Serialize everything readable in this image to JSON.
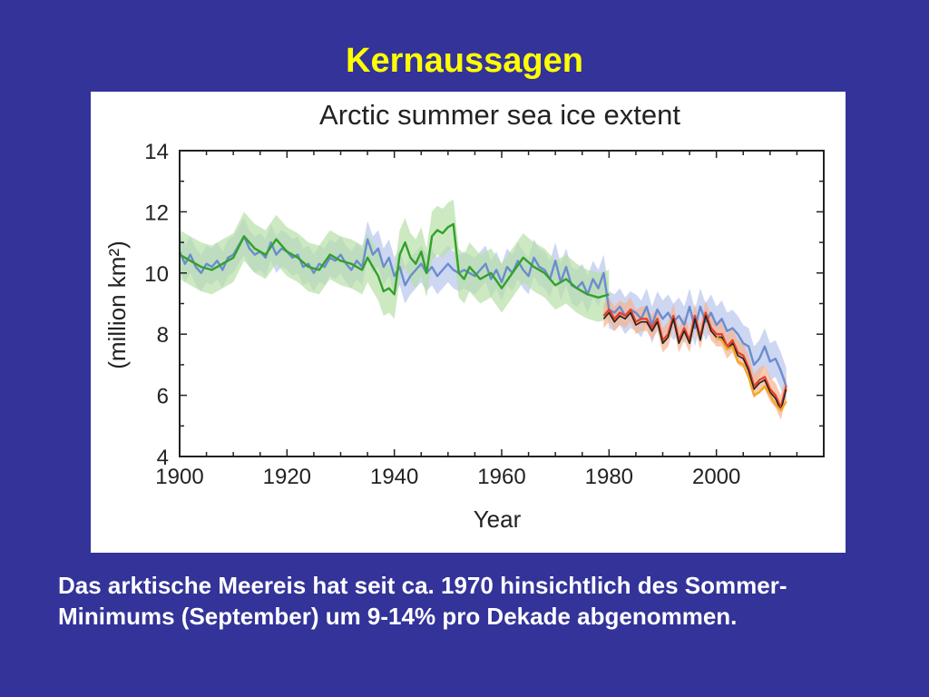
{
  "slide": {
    "title": "Kernaussagen",
    "caption": "Das arktische Meereis hat seit ca. 1970 hinsichtlich des Sommer-Minimums (September) um 9-14% pro Dekade abgenommen."
  },
  "chart_data": {
    "type": "line",
    "title": "Arctic summer sea ice extent",
    "xlabel": "Year",
    "ylabel": "(million km²)",
    "xlim": [
      1900,
      2020
    ],
    "ylim": [
      4,
      14
    ],
    "xticks": [
      1900,
      1920,
      1940,
      1960,
      1980,
      2000
    ],
    "yticks": [
      4,
      6,
      8,
      10,
      12,
      14
    ],
    "grid": false,
    "legend": "none",
    "colors": {
      "blue": "#6b8ccf",
      "green": "#33a02c",
      "red": "#e8402a",
      "orange": "#f5a623",
      "black": "#222222",
      "blue_band": "#b8c6ec",
      "green_band": "#b7dfa8",
      "red_band": "#f7b28e"
    },
    "series": [
      {
        "color_key": "blue",
        "band_color_key": "blue_band",
        "band_halfwidth": 0.6,
        "x": [
          1900,
          1901,
          1902,
          1903,
          1904,
          1905,
          1906,
          1907,
          1908,
          1909,
          1910,
          1911,
          1912,
          1913,
          1914,
          1915,
          1916,
          1917,
          1918,
          1919,
          1920,
          1921,
          1922,
          1923,
          1924,
          1925,
          1926,
          1927,
          1928,
          1929,
          1930,
          1931,
          1932,
          1933,
          1934,
          1935,
          1936,
          1937,
          1938,
          1939,
          1940,
          1941,
          1942,
          1943,
          1944,
          1945,
          1946,
          1947,
          1948,
          1949,
          1950,
          1951,
          1952,
          1953,
          1954,
          1955,
          1956,
          1957,
          1958,
          1959,
          1960,
          1961,
          1962,
          1963,
          1964,
          1965,
          1966,
          1967,
          1968,
          1969,
          1970,
          1971,
          1972,
          1973,
          1974,
          1975,
          1976,
          1977,
          1978,
          1979,
          1980,
          1981,
          1982,
          1983,
          1984,
          1985,
          1986,
          1987,
          1988,
          1989,
          1990,
          1991,
          1992,
          1993,
          1994,
          1995,
          1996,
          1997,
          1998,
          1999,
          2000,
          2001,
          2002,
          2003,
          2004,
          2005,
          2006,
          2007,
          2008,
          2009,
          2010,
          2011,
          2012,
          2013
        ],
        "y": [
          10.7,
          10.3,
          10.6,
          10.2,
          10.0,
          10.3,
          10.2,
          10.4,
          10.1,
          10.5,
          10.6,
          10.9,
          11.2,
          10.8,
          10.6,
          10.7,
          10.5,
          11.0,
          10.6,
          10.8,
          10.7,
          10.5,
          10.6,
          10.2,
          10.3,
          10.0,
          10.3,
          10.2,
          10.5,
          10.4,
          10.6,
          10.3,
          10.1,
          10.4,
          10.2,
          11.1,
          10.6,
          10.8,
          10.2,
          10.5,
          9.9,
          10.2,
          9.6,
          9.9,
          10.1,
          10.3,
          10.0,
          10.2,
          9.9,
          10.1,
          10.3,
          10.1,
          10.0,
          10.1,
          10.0,
          9.9,
          10.1,
          10.3,
          9.8,
          10.1,
          9.7,
          10.2,
          10.0,
          10.4,
          10.1,
          9.9,
          10.5,
          10.2,
          10.1,
          9.8,
          10.4,
          9.7,
          10.2,
          9.6,
          9.5,
          9.7,
          9.3,
          9.8,
          9.5,
          10.0,
          8.8,
          8.7,
          8.9,
          8.6,
          8.8,
          8.7,
          8.5,
          8.9,
          8.3,
          8.8,
          8.5,
          8.7,
          8.4,
          8.6,
          8.3,
          8.9,
          8.2,
          8.9,
          8.4,
          8.7,
          8.3,
          8.5,
          8.1,
          8.2,
          8.0,
          7.7,
          7.6,
          7.0,
          7.2,
          7.6,
          7.1,
          7.2,
          6.8,
          6.3
        ]
      },
      {
        "color_key": "green",
        "band_color_key": "green_band",
        "band_halfwidth": 0.8,
        "x": [
          1900,
          1902,
          1904,
          1906,
          1908,
          1910,
          1912,
          1914,
          1916,
          1918,
          1920,
          1922,
          1924,
          1926,
          1928,
          1930,
          1932,
          1934,
          1935,
          1936,
          1937,
          1938,
          1939,
          1940,
          1941,
          1942,
          1943,
          1944,
          1945,
          1946,
          1947,
          1948,
          1949,
          1950,
          1951,
          1952,
          1953,
          1954,
          1956,
          1958,
          1960,
          1962,
          1964,
          1966,
          1968,
          1970,
          1972,
          1974,
          1976,
          1978,
          1980
        ],
        "y": [
          10.6,
          10.4,
          10.2,
          10.1,
          10.3,
          10.5,
          11.2,
          10.8,
          10.6,
          11.1,
          10.7,
          10.5,
          10.2,
          10.1,
          10.6,
          10.4,
          10.3,
          10.1,
          10.5,
          10.2,
          9.9,
          9.4,
          9.5,
          9.3,
          10.6,
          11.0,
          10.5,
          10.3,
          10.7,
          10.0,
          11.2,
          11.4,
          11.3,
          11.5,
          11.6,
          10.0,
          9.8,
          10.2,
          9.8,
          10.0,
          9.5,
          10.0,
          10.5,
          10.2,
          10.0,
          9.6,
          9.8,
          9.5,
          9.3,
          9.2,
          9.3
        ]
      },
      {
        "color_key": "red",
        "band_color_key": "red_band",
        "band_halfwidth": 0.4,
        "x": [
          1979,
          1980,
          1981,
          1982,
          1983,
          1984,
          1985,
          1986,
          1987,
          1988,
          1989,
          1990,
          1991,
          1992,
          1993,
          1994,
          1995,
          1996,
          1997,
          1998,
          1999,
          2000,
          2001,
          2002,
          2003,
          2004,
          2005,
          2006,
          2007,
          2008,
          2009,
          2010,
          2011,
          2012,
          2013
        ],
        "y": [
          8.6,
          8.8,
          8.5,
          8.7,
          8.6,
          8.8,
          8.4,
          8.5,
          8.5,
          8.2,
          8.5,
          7.8,
          8.0,
          8.6,
          7.8,
          8.2,
          7.8,
          8.6,
          7.9,
          8.7,
          8.2,
          8.0,
          8.0,
          7.6,
          7.8,
          7.4,
          7.3,
          6.9,
          6.3,
          6.5,
          6.6,
          6.2,
          6.0,
          5.6,
          6.3
        ]
      },
      {
        "color_key": "black",
        "x": [
          1979,
          1980,
          1981,
          1982,
          1983,
          1984,
          1985,
          1986,
          1987,
          1988,
          1989,
          1990,
          1991,
          1992,
          1993,
          1994,
          1995,
          1996,
          1997,
          1998,
          1999,
          2000,
          2001,
          2002,
          2003,
          2004,
          2005,
          2006,
          2007,
          2008,
          2009,
          2010,
          2011,
          2012,
          2013
        ],
        "y": [
          8.5,
          8.7,
          8.4,
          8.6,
          8.5,
          8.7,
          8.3,
          8.4,
          8.4,
          8.1,
          8.4,
          7.7,
          7.9,
          8.5,
          7.7,
          8.1,
          7.7,
          8.5,
          7.8,
          8.6,
          8.1,
          7.9,
          7.9,
          7.5,
          7.7,
          7.3,
          7.2,
          6.8,
          6.2,
          6.4,
          6.5,
          6.1,
          5.9,
          5.5,
          6.2
        ]
      },
      {
        "color_key": "orange",
        "x": [
          2000,
          2001,
          2002,
          2003,
          2004,
          2005,
          2006,
          2007,
          2008,
          2009,
          2010,
          2011,
          2012,
          2013
        ],
        "y": [
          7.9,
          7.8,
          7.5,
          7.6,
          7.1,
          7.0,
          6.6,
          6.0,
          6.1,
          6.3,
          6.0,
          5.7,
          5.5,
          5.8
        ]
      }
    ]
  }
}
